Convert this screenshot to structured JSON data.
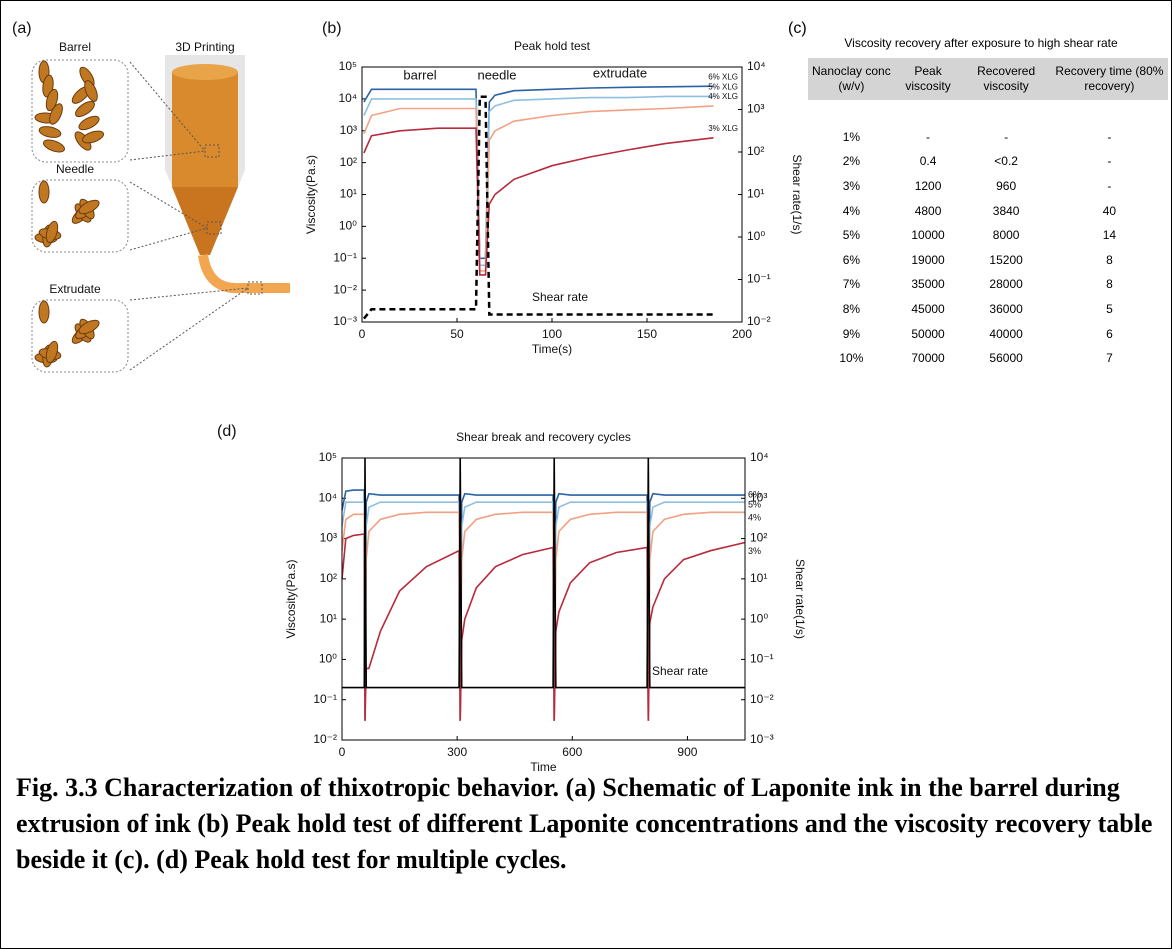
{
  "schematic": {
    "panel_label": "(a)",
    "title": "3D Printing",
    "labels": [
      "Barrel",
      "Needle",
      "Extrudate"
    ]
  },
  "chart_data": [
    {
      "type": "line",
      "panel_label": "(b)",
      "title": "Peak hold test",
      "x_label": "Time(s)",
      "y_label": "Viscosity(Pa.s)",
      "y2_label": "Shear rate(1/s)",
      "log_y": true,
      "annotations": [
        "barrel",
        "needle",
        "extrudate"
      ],
      "xlim": [
        0,
        200
      ],
      "xticks": [
        0,
        50,
        100,
        150,
        200
      ],
      "ylim": [
        0.001,
        100000
      ],
      "yticks": [
        {
          "value": 0.001,
          "label": "10⁻³"
        },
        {
          "value": 0.01,
          "label": "10⁻²"
        },
        {
          "value": 0.1,
          "label": "10⁻¹"
        },
        {
          "value": 1,
          "label": "10⁰"
        },
        {
          "value": 10,
          "label": "10¹"
        },
        {
          "value": 100,
          "label": "10²"
        },
        {
          "value": 1000,
          "label": "10³"
        },
        {
          "value": 10000,
          "label": "10⁴"
        },
        {
          "value": 100000,
          "label": "10⁵"
        }
      ],
      "y2lim": [
        0.01,
        10000
      ],
      "y2ticks": [
        {
          "value": 0.01,
          "label": "10⁻²"
        },
        {
          "value": 0.1,
          "label": "10⁻¹"
        },
        {
          "value": 1,
          "label": "10⁰"
        },
        {
          "value": 10,
          "label": "10¹"
        },
        {
          "value": 100,
          "label": "10²"
        },
        {
          "value": 1000,
          "label": "10³"
        },
        {
          "value": 10000,
          "label": "10⁴"
        }
      ],
      "x": [
        1,
        5,
        20,
        40,
        60,
        62,
        65,
        67,
        70,
        80,
        100,
        120,
        140,
        160,
        185
      ],
      "series": [
        {
          "name": "6% XLG",
          "color": "#2a62a6",
          "values": [
            8000,
            20000,
            20000,
            20000,
            20000,
            0.1,
            0.1,
            8000,
            13000,
            18000,
            20000,
            22000,
            23000,
            24000,
            25000
          ]
        },
        {
          "name": "5% XLG",
          "color": "#8ebfe0",
          "values": [
            3000,
            10000,
            10000,
            10000,
            10000,
            0.06,
            0.06,
            4000,
            6000,
            9000,
            10000,
            11000,
            11000,
            12000,
            12000
          ]
        },
        {
          "name": "4% XLG",
          "color": "#f2a184",
          "values": [
            800,
            3000,
            5000,
            5000,
            5000,
            0.04,
            0.04,
            500,
            1000,
            2000,
            3000,
            4000,
            4500,
            5000,
            6000
          ]
        },
        {
          "name": "3% XLG",
          "color": "#b82a3c",
          "values": [
            200,
            700,
            1000,
            1200,
            1200,
            0.03,
            0.03,
            5,
            10,
            30,
            80,
            150,
            250,
            400,
            600
          ]
        },
        {
          "name": "Shear rate",
          "color": "#000000",
          "axis": "y2",
          "dashed": true,
          "values": [
            0.012,
            0.02,
            0.02,
            0.02,
            0.02,
            2000,
            2000,
            0.015,
            0.015,
            0.015,
            0.015,
            0.015,
            0.015,
            0.015,
            0.015
          ]
        }
      ]
    },
    {
      "type": "line",
      "panel_label": "(d)",
      "title": "Shear break and recovery cycles",
      "x_label": "Time",
      "y_label": "Viscosity(Pa.s)",
      "y2_label": "Shear rate(1/s)",
      "log_y": true,
      "xlim": [
        0,
        1050
      ],
      "xticks": [
        0,
        300,
        600,
        900
      ],
      "ylim": [
        0.01,
        100000
      ],
      "yticks": [
        {
          "value": 0.01,
          "label": "10⁻²"
        },
        {
          "value": 0.1,
          "label": "10⁻¹"
        },
        {
          "value": 1,
          "label": "10⁰"
        },
        {
          "value": 10,
          "label": "10¹"
        },
        {
          "value": 100,
          "label": "10²"
        },
        {
          "value": 1000,
          "label": "10³"
        },
        {
          "value": 10000,
          "label": "10⁴"
        },
        {
          "value": 100000,
          "label": "10⁵"
        }
      ],
      "y2lim": [
        0.001,
        10000
      ],
      "y2ticks": [
        {
          "value": 0.001,
          "label": "10⁻³"
        },
        {
          "value": 0.01,
          "label": "10⁻²"
        },
        {
          "value": 0.1,
          "label": "10⁻¹"
        },
        {
          "value": 1,
          "label": "10⁰"
        },
        {
          "value": 10,
          "label": "10¹"
        },
        {
          "value": 100,
          "label": "10²"
        },
        {
          "value": 1000,
          "label": "10³"
        },
        {
          "value": 10000,
          "label": "10⁴"
        }
      ],
      "x": [
        0,
        10,
        30,
        58,
        60,
        63,
        70,
        100,
        150,
        220,
        305,
        308,
        312,
        320,
        350,
        400,
        470,
        550,
        553,
        557,
        565,
        595,
        645,
        715,
        795,
        798,
        802,
        810,
        840,
        890,
        960,
        1050
      ],
      "series": [
        {
          "name": "6%",
          "color": "#2a62a6",
          "values": [
            5000,
            15000,
            16000,
            16000,
            0.03,
            8000,
            13000,
            12000,
            12000,
            12000,
            12000,
            0.03,
            8000,
            13000,
            12000,
            12000,
            12000,
            12000,
            0.03,
            8000,
            13000,
            12000,
            12000,
            12000,
            12000,
            0.03,
            8000,
            13000,
            12000,
            12000,
            12000,
            12000
          ]
        },
        {
          "name": "5%",
          "color": "#8ebfe0",
          "values": [
            2000,
            8000,
            8000,
            8000,
            0.03,
            2000,
            6000,
            8000,
            8000,
            8000,
            8000,
            0.03,
            2000,
            6000,
            8000,
            8000,
            8000,
            8000,
            0.03,
            2000,
            6000,
            8000,
            8000,
            8000,
            8000,
            0.03,
            2000,
            6000,
            8000,
            8000,
            8000,
            8000
          ]
        },
        {
          "name": "4%",
          "color": "#f2a184",
          "values": [
            500,
            3000,
            4000,
            4000,
            0.03,
            300,
            1500,
            3000,
            4000,
            4500,
            4500,
            0.03,
            300,
            1500,
            3000,
            4000,
            4500,
            4500,
            0.03,
            300,
            1500,
            3000,
            4000,
            4500,
            4500,
            0.03,
            300,
            1500,
            3000,
            4000,
            4500,
            4500
          ]
        },
        {
          "name": "3%",
          "color": "#b82a3c",
          "values": [
            100,
            1000,
            1200,
            1300,
            0.03,
            0.6,
            0.6,
            5,
            50,
            200,
            500,
            0.03,
            3,
            10,
            60,
            200,
            400,
            600,
            0.03,
            5,
            15,
            80,
            250,
            450,
            600,
            0.03,
            8,
            20,
            100,
            300,
            500,
            800
          ]
        },
        {
          "name": "Shear rate",
          "color": "#000000",
          "axis": "y2",
          "values": [
            0.02,
            0.02,
            0.02,
            0.02,
            10000,
            0.02,
            0.02,
            0.02,
            0.02,
            0.02,
            0.02,
            10000,
            0.02,
            0.02,
            0.02,
            0.02,
            0.02,
            0.02,
            10000,
            0.02,
            0.02,
            0.02,
            0.02,
            0.02,
            0.02,
            10000,
            0.02,
            0.02,
            0.02,
            0.02,
            0.02,
            0.02
          ]
        }
      ]
    }
  ],
  "table": {
    "panel_label": "(c)",
    "title": "Viscosity recovery after exposure to high shear rate",
    "header": [
      "Nanoclay conc (w/v)",
      "Peak viscosity",
      "Recovered viscosity",
      "Recovery time (80% recovery)"
    ],
    "rows": [
      [
        "1%",
        "-",
        "-",
        "-"
      ],
      [
        "2%",
        "0.4",
        "<0.2",
        "-"
      ],
      [
        "3%",
        "1200",
        "960",
        "-"
      ],
      [
        "4%",
        "4800",
        "3840",
        "40"
      ],
      [
        "5%",
        "10000",
        "8000",
        "14"
      ],
      [
        "6%",
        "19000",
        "15200",
        "8"
      ],
      [
        "7%",
        "35000",
        "28000",
        "8"
      ],
      [
        "8%",
        "45000",
        "36000",
        "5"
      ],
      [
        "9%",
        "50000",
        "40000",
        "6"
      ],
      [
        "10%",
        "70000",
        "56000",
        "7"
      ]
    ]
  },
  "caption": "Fig. 3.3 Characterization of thixotropic behavior. (a) Schematic of Laponite ink in the barrel during extrusion of ink (b) Peak hold test of different Laponite concentrations and the viscosity recovery table beside it (c). (d) Peak hold test for multiple cycles."
}
